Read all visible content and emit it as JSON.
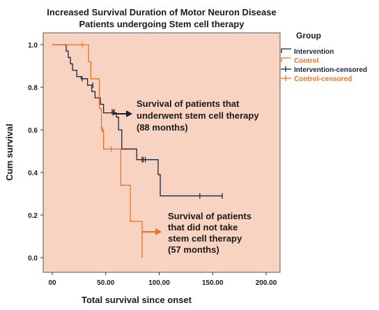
{
  "chart_data": {
    "type": "line",
    "title_lines": [
      "Increased Survival Duration of Motor Neuron Disease",
      "Patients undergoing Stem cell therapy"
    ],
    "xlabel": "Total survival since onset",
    "ylabel": "Cum survival",
    "xlim": [
      0,
      200
    ],
    "ylim": [
      0,
      1.0
    ],
    "x_ticks": [
      0,
      50,
      100,
      150,
      200
    ],
    "x_tick_labels": [
      "00",
      "50.00",
      "100.00",
      "150.00",
      "200.00"
    ],
    "y_ticks": [
      0,
      0.2,
      0.4,
      0.6,
      0.8,
      1.0
    ],
    "y_tick_labels": [
      "0.0",
      "0.2",
      "0.4",
      "0.6",
      "0.8",
      "1.0"
    ],
    "grid": false,
    "plot_background": "#f9d3c1",
    "legend": {
      "title": "Group",
      "position": "right",
      "entries": [
        {
          "label": "Intervention",
          "color": "#1c2333",
          "marker": "step"
        },
        {
          "label": "Control",
          "color": "#f07020",
          "marker": "step"
        },
        {
          "label": "Intervention-censored",
          "color": "#1c2333",
          "marker": "cross"
        },
        {
          "label": "Control-censored",
          "color": "#f07020",
          "marker": "cross"
        }
      ]
    },
    "series": [
      {
        "name": "Intervention",
        "color": "#1c2333",
        "steps": [
          [
            0,
            1.0
          ],
          [
            13,
            0.97
          ],
          [
            15,
            0.94
          ],
          [
            17,
            0.91
          ],
          [
            19,
            0.88
          ],
          [
            23,
            0.85
          ],
          [
            27,
            0.84
          ],
          [
            33,
            0.81
          ],
          [
            37,
            0.78
          ],
          [
            40,
            0.75
          ],
          [
            45,
            0.72
          ],
          [
            48,
            0.68
          ],
          [
            52,
            0.68
          ],
          [
            60,
            0.66
          ],
          [
            62,
            0.6
          ],
          [
            65,
            0.51
          ],
          [
            79,
            0.46
          ],
          [
            93,
            0.46
          ],
          [
            99,
            0.39
          ],
          [
            101,
            0.29
          ],
          [
            159,
            0.29
          ]
        ],
        "censored": [
          [
            28,
            0.84
          ],
          [
            38,
            0.81
          ],
          [
            56,
            0.685
          ],
          [
            57,
            0.68
          ],
          [
            58,
            0.685
          ],
          [
            84,
            0.46
          ],
          [
            85,
            0.46
          ],
          [
            87,
            0.46
          ],
          [
            138,
            0.29
          ],
          [
            159,
            0.29
          ]
        ]
      },
      {
        "name": "Control",
        "color": "#f07020",
        "steps": [
          [
            0,
            1.0
          ],
          [
            34,
            0.92
          ],
          [
            36,
            0.84
          ],
          [
            44,
            0.7
          ],
          [
            46,
            0.6
          ],
          [
            48,
            0.51
          ],
          [
            64,
            0.34
          ],
          [
            73,
            0.17
          ],
          [
            84,
            0.0
          ]
        ],
        "censored": [
          [
            28,
            1.0
          ],
          [
            47,
            0.6
          ],
          [
            55,
            0.51
          ]
        ]
      }
    ],
    "annotations": [
      {
        "lines": [
          "Survival of patients that",
          "underwent stem cell therapy",
          "(88 months)"
        ],
        "arrow_color": "#1c2333"
      },
      {
        "lines": [
          "Survival of patients",
          "that did not take",
          "stem cell therapy",
          "(57 months)"
        ],
        "arrow_color": "#f07020"
      }
    ]
  }
}
